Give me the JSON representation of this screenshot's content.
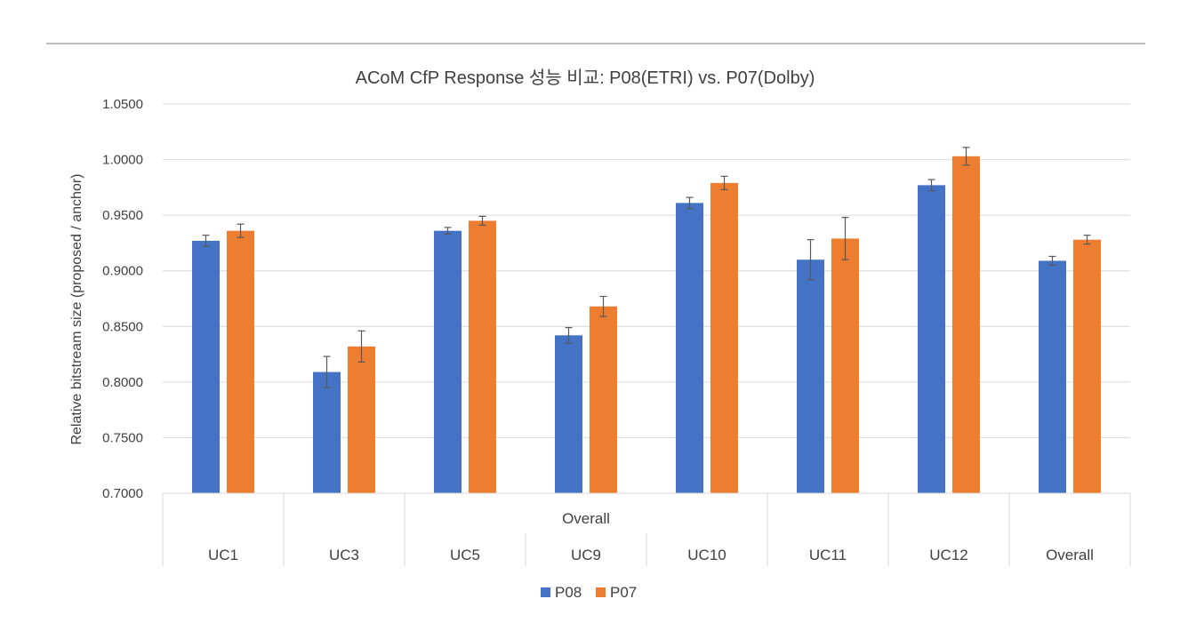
{
  "chart_data": {
    "type": "bar",
    "title": "ACoM CfP Response 성능 비교: P08(ETRI) vs. P07(Dolby)",
    "xlabel": "",
    "ylabel": "Relative bitstream size (proposed / anchor)",
    "ylim": [
      0.7,
      1.05
    ],
    "yticks": [
      "0.7000",
      "0.7500",
      "0.8000",
      "0.8500",
      "0.9000",
      "0.9500",
      "1.0000",
      "1.0500"
    ],
    "grid": true,
    "legend_position": "bottom",
    "categories": [
      "UC1",
      "UC3",
      "UC5",
      "UC9",
      "UC10",
      "UC11",
      "UC12",
      "Overall"
    ],
    "group_label": {
      "text": "Overall",
      "spans": [
        "UC9"
      ]
    },
    "series": [
      {
        "name": "P08",
        "color": "#4472C4",
        "values": [
          0.927,
          0.809,
          0.936,
          0.842,
          0.961,
          0.91,
          0.977,
          0.909
        ],
        "errors": [
          0.005,
          0.014,
          0.003,
          0.007,
          0.005,
          0.018,
          0.005,
          0.004
        ]
      },
      {
        "name": "P07",
        "color": "#ED7D31",
        "values": [
          0.936,
          0.832,
          0.945,
          0.868,
          0.979,
          0.929,
          1.003,
          0.928
        ],
        "errors": [
          0.006,
          0.014,
          0.004,
          0.009,
          0.006,
          0.019,
          0.008,
          0.004
        ]
      }
    ]
  }
}
